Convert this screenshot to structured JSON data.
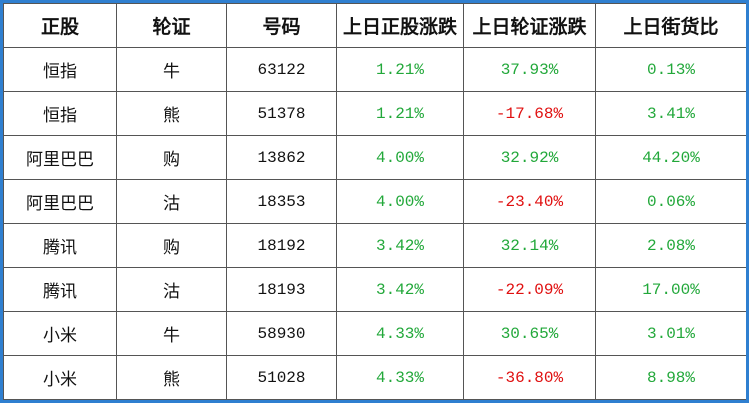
{
  "table": {
    "header": [
      "正股",
      "轮证",
      "号码",
      "上日正股涨跌",
      "上日轮证涨跌",
      "上日街货比"
    ],
    "rows": [
      [
        "恒指",
        "牛",
        "63122",
        "1.21%",
        "37.93%",
        "0.13%"
      ],
      [
        "恒指",
        "熊",
        "51378",
        "1.21%",
        "-17.68%",
        "3.41%"
      ],
      [
        "阿里巴巴",
        "购",
        "13862",
        "4.00%",
        "32.92%",
        "44.20%"
      ],
      [
        "阿里巴巴",
        "沽",
        "18353",
        "4.00%",
        "-23.40%",
        "0.06%"
      ],
      [
        "腾讯",
        "购",
        "18192",
        "3.42%",
        "32.14%",
        "2.08%"
      ],
      [
        "腾讯",
        "沽",
        "18193",
        "3.42%",
        "-22.09%",
        "17.00%"
      ],
      [
        "小米",
        "牛",
        "58930",
        "4.33%",
        "30.65%",
        "3.01%"
      ],
      [
        "小米",
        "熊",
        "51028",
        "4.33%",
        "-36.80%",
        "8.98%"
      ]
    ]
  }
}
